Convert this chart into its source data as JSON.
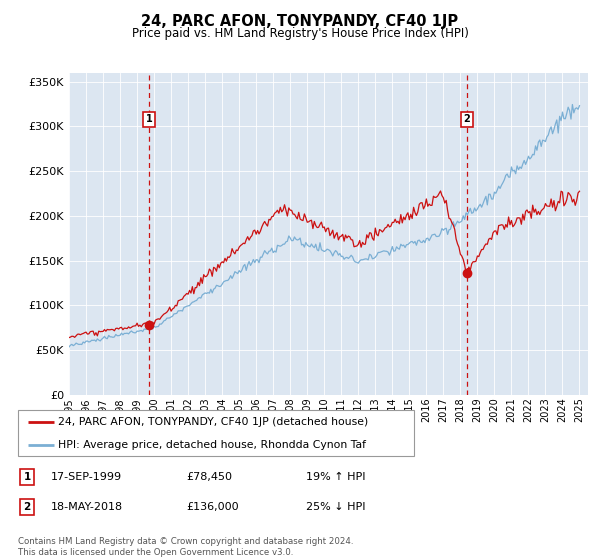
{
  "title": "24, PARC AFON, TONYPANDY, CF40 1JP",
  "subtitle": "Price paid vs. HM Land Registry's House Price Index (HPI)",
  "legend_line1": "24, PARC AFON, TONYPANDY, CF40 1JP (detached house)",
  "legend_line2": "HPI: Average price, detached house, Rhondda Cynon Taf",
  "annotation1_date": "17-SEP-1999",
  "annotation1_price": "£78,450",
  "annotation1_hpi": "19% ↑ HPI",
  "annotation2_date": "18-MAY-2018",
  "annotation2_price": "£136,000",
  "annotation2_hpi": "25% ↓ HPI",
  "footer": "Contains HM Land Registry data © Crown copyright and database right 2024.\nThis data is licensed under the Open Government Licence v3.0.",
  "hpi_color": "#7bafd4",
  "price_color": "#cc1111",
  "background_color": "#dce6f1",
  "ylim": [
    0,
    360000
  ],
  "yticks": [
    0,
    50000,
    100000,
    150000,
    200000,
    250000,
    300000,
    350000
  ],
  "ytick_labels": [
    "£0",
    "£50K",
    "£100K",
    "£150K",
    "£200K",
    "£250K",
    "£300K",
    "£350K"
  ],
  "marker1_year": 1999.71,
  "marker1_value": 78450,
  "marker2_year": 2018.38,
  "marker2_value": 136000,
  "xlim_left": 1995.0,
  "xlim_right": 2025.5
}
